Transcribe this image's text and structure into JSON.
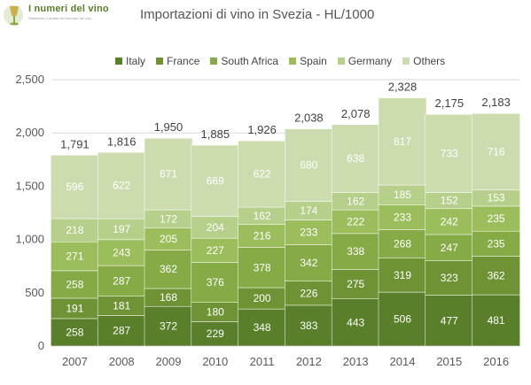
{
  "logo": {
    "name": "I numeri del vino",
    "tagline": "Statistiche e analisi del mercato del vino"
  },
  "chart_data": {
    "type": "bar",
    "stacked": true,
    "title": "Importazioni di vino in Svezia - HL/1000",
    "xlabel": "",
    "ylabel": "",
    "categories": [
      "2007",
      "2008",
      "2009",
      "2010",
      "2011",
      "2012",
      "2013",
      "2014",
      "2015",
      "2016"
    ],
    "ylim": [
      0,
      2500
    ],
    "yticks": [
      0,
      500,
      1000,
      1500,
      2000,
      2500
    ],
    "ytick_labels": [
      "0",
      "500",
      "1,000",
      "1,500",
      "2,000",
      "2,500"
    ],
    "grid": true,
    "legend_position": "top",
    "series": [
      {
        "name": "Italy",
        "color": "#5a7f2a",
        "values": [
          258,
          287,
          372,
          229,
          348,
          383,
          443,
          506,
          477,
          481
        ]
      },
      {
        "name": "France",
        "color": "#6f9334",
        "values": [
          191,
          181,
          168,
          180,
          200,
          226,
          275,
          319,
          323,
          362
        ]
      },
      {
        "name": "South Africa",
        "color": "#86aa45",
        "values": [
          258,
          287,
          362,
          376,
          378,
          342,
          338,
          268,
          247,
          235
        ]
      },
      {
        "name": "Spain",
        "color": "#9cbd5b",
        "values": [
          271,
          243,
          205,
          227,
          216,
          233,
          222,
          233,
          242,
          235
        ]
      },
      {
        "name": "Germany",
        "color": "#b6cf8a",
        "values": [
          218,
          197,
          172,
          204,
          162,
          174,
          162,
          185,
          152,
          153
        ]
      },
      {
        "name": "Others",
        "color": "#ccdcaf",
        "values": [
          596,
          622,
          671,
          669,
          622,
          680,
          638,
          817,
          733,
          716
        ]
      }
    ],
    "totals": [
      1791,
      1816,
      1950,
      1885,
      1926,
      2038,
      2078,
      2328,
      2175,
      2183
    ],
    "total_labels": [
      "1,791",
      "1,816",
      "1,950",
      "1,885",
      "1,926",
      "2,038",
      "2,078",
      "2,328",
      "2,175",
      "2,183"
    ]
  }
}
